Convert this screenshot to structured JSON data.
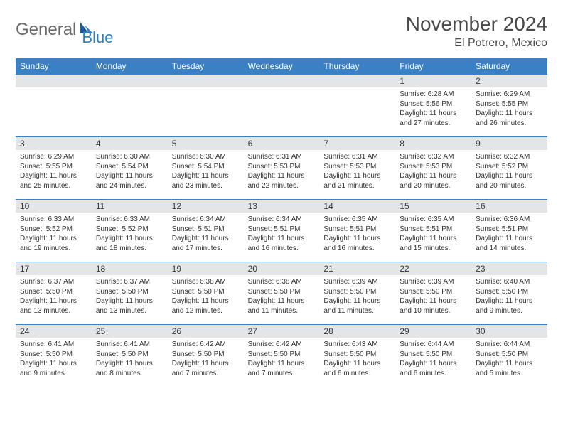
{
  "logo": {
    "text1": "General",
    "text2": "Blue"
  },
  "header": {
    "month_title": "November 2024",
    "location": "El Potrero, Mexico"
  },
  "colors": {
    "header_bar": "#3a80c4",
    "header_text": "#ffffff",
    "daynum_bg": "#e3e5e7",
    "border": "#3a80c4",
    "body_text": "#333333",
    "logo_gray": "#6a6a6a",
    "logo_blue": "#2f7fbf"
  },
  "day_labels": [
    "Sunday",
    "Monday",
    "Tuesday",
    "Wednesday",
    "Thursday",
    "Friday",
    "Saturday"
  ],
  "weeks": [
    [
      {
        "empty": true
      },
      {
        "empty": true
      },
      {
        "empty": true
      },
      {
        "empty": true
      },
      {
        "empty": true
      },
      {
        "num": "1",
        "sunrise": "Sunrise: 6:28 AM",
        "sunset": "Sunset: 5:56 PM",
        "daylight": "Daylight: 11 hours and 27 minutes."
      },
      {
        "num": "2",
        "sunrise": "Sunrise: 6:29 AM",
        "sunset": "Sunset: 5:55 PM",
        "daylight": "Daylight: 11 hours and 26 minutes."
      }
    ],
    [
      {
        "num": "3",
        "sunrise": "Sunrise: 6:29 AM",
        "sunset": "Sunset: 5:55 PM",
        "daylight": "Daylight: 11 hours and 25 minutes."
      },
      {
        "num": "4",
        "sunrise": "Sunrise: 6:30 AM",
        "sunset": "Sunset: 5:54 PM",
        "daylight": "Daylight: 11 hours and 24 minutes."
      },
      {
        "num": "5",
        "sunrise": "Sunrise: 6:30 AM",
        "sunset": "Sunset: 5:54 PM",
        "daylight": "Daylight: 11 hours and 23 minutes."
      },
      {
        "num": "6",
        "sunrise": "Sunrise: 6:31 AM",
        "sunset": "Sunset: 5:53 PM",
        "daylight": "Daylight: 11 hours and 22 minutes."
      },
      {
        "num": "7",
        "sunrise": "Sunrise: 6:31 AM",
        "sunset": "Sunset: 5:53 PM",
        "daylight": "Daylight: 11 hours and 21 minutes."
      },
      {
        "num": "8",
        "sunrise": "Sunrise: 6:32 AM",
        "sunset": "Sunset: 5:53 PM",
        "daylight": "Daylight: 11 hours and 20 minutes."
      },
      {
        "num": "9",
        "sunrise": "Sunrise: 6:32 AM",
        "sunset": "Sunset: 5:52 PM",
        "daylight": "Daylight: 11 hours and 20 minutes."
      }
    ],
    [
      {
        "num": "10",
        "sunrise": "Sunrise: 6:33 AM",
        "sunset": "Sunset: 5:52 PM",
        "daylight": "Daylight: 11 hours and 19 minutes."
      },
      {
        "num": "11",
        "sunrise": "Sunrise: 6:33 AM",
        "sunset": "Sunset: 5:52 PM",
        "daylight": "Daylight: 11 hours and 18 minutes."
      },
      {
        "num": "12",
        "sunrise": "Sunrise: 6:34 AM",
        "sunset": "Sunset: 5:51 PM",
        "daylight": "Daylight: 11 hours and 17 minutes."
      },
      {
        "num": "13",
        "sunrise": "Sunrise: 6:34 AM",
        "sunset": "Sunset: 5:51 PM",
        "daylight": "Daylight: 11 hours and 16 minutes."
      },
      {
        "num": "14",
        "sunrise": "Sunrise: 6:35 AM",
        "sunset": "Sunset: 5:51 PM",
        "daylight": "Daylight: 11 hours and 16 minutes."
      },
      {
        "num": "15",
        "sunrise": "Sunrise: 6:35 AM",
        "sunset": "Sunset: 5:51 PM",
        "daylight": "Daylight: 11 hours and 15 minutes."
      },
      {
        "num": "16",
        "sunrise": "Sunrise: 6:36 AM",
        "sunset": "Sunset: 5:51 PM",
        "daylight": "Daylight: 11 hours and 14 minutes."
      }
    ],
    [
      {
        "num": "17",
        "sunrise": "Sunrise: 6:37 AM",
        "sunset": "Sunset: 5:50 PM",
        "daylight": "Daylight: 11 hours and 13 minutes."
      },
      {
        "num": "18",
        "sunrise": "Sunrise: 6:37 AM",
        "sunset": "Sunset: 5:50 PM",
        "daylight": "Daylight: 11 hours and 13 minutes."
      },
      {
        "num": "19",
        "sunrise": "Sunrise: 6:38 AM",
        "sunset": "Sunset: 5:50 PM",
        "daylight": "Daylight: 11 hours and 12 minutes."
      },
      {
        "num": "20",
        "sunrise": "Sunrise: 6:38 AM",
        "sunset": "Sunset: 5:50 PM",
        "daylight": "Daylight: 11 hours and 11 minutes."
      },
      {
        "num": "21",
        "sunrise": "Sunrise: 6:39 AM",
        "sunset": "Sunset: 5:50 PM",
        "daylight": "Daylight: 11 hours and 11 minutes."
      },
      {
        "num": "22",
        "sunrise": "Sunrise: 6:39 AM",
        "sunset": "Sunset: 5:50 PM",
        "daylight": "Daylight: 11 hours and 10 minutes."
      },
      {
        "num": "23",
        "sunrise": "Sunrise: 6:40 AM",
        "sunset": "Sunset: 5:50 PM",
        "daylight": "Daylight: 11 hours and 9 minutes."
      }
    ],
    [
      {
        "num": "24",
        "sunrise": "Sunrise: 6:41 AM",
        "sunset": "Sunset: 5:50 PM",
        "daylight": "Daylight: 11 hours and 9 minutes."
      },
      {
        "num": "25",
        "sunrise": "Sunrise: 6:41 AM",
        "sunset": "Sunset: 5:50 PM",
        "daylight": "Daylight: 11 hours and 8 minutes."
      },
      {
        "num": "26",
        "sunrise": "Sunrise: 6:42 AM",
        "sunset": "Sunset: 5:50 PM",
        "daylight": "Daylight: 11 hours and 7 minutes."
      },
      {
        "num": "27",
        "sunrise": "Sunrise: 6:42 AM",
        "sunset": "Sunset: 5:50 PM",
        "daylight": "Daylight: 11 hours and 7 minutes."
      },
      {
        "num": "28",
        "sunrise": "Sunrise: 6:43 AM",
        "sunset": "Sunset: 5:50 PM",
        "daylight": "Daylight: 11 hours and 6 minutes."
      },
      {
        "num": "29",
        "sunrise": "Sunrise: 6:44 AM",
        "sunset": "Sunset: 5:50 PM",
        "daylight": "Daylight: 11 hours and 6 minutes."
      },
      {
        "num": "30",
        "sunrise": "Sunrise: 6:44 AM",
        "sunset": "Sunset: 5:50 PM",
        "daylight": "Daylight: 11 hours and 5 minutes."
      }
    ]
  ]
}
